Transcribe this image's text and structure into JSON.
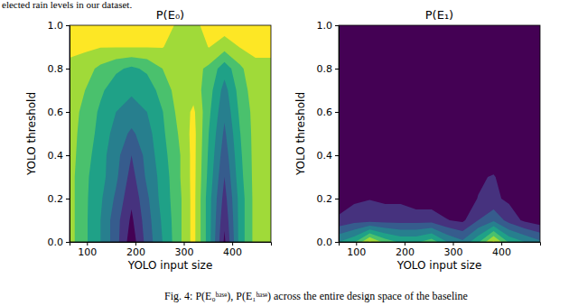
{
  "caption_above": "elected rain levels in our dataset.",
  "caption": "Fig. 4: P(E₀ᵇᵃˢᵉ), P(E₁ᵇᵃˢᵉ) across the entire design space of the baseline",
  "chart_data": [
    {
      "type": "contour",
      "title": "P(E₀)",
      "x_label": "YOLO input size",
      "y_label": "YOLO threshold",
      "x": [
        64,
        96,
        128,
        160,
        192,
        224,
        256,
        288,
        320,
        352,
        384,
        416,
        448,
        480
      ],
      "y": [
        0,
        0.1,
        0.2,
        0.3,
        0.4,
        0.5,
        0.6,
        0.7,
        0.8,
        0.9,
        1.0
      ],
      "z": [
        [
          0.8,
          0.65,
          0.5,
          0.3,
          0.05,
          0.3,
          0.5,
          0.7,
          0.92,
          0.55,
          0.1,
          0.55,
          0.8,
          0.8
        ],
        [
          0.8,
          0.65,
          0.5,
          0.3,
          0.1,
          0.32,
          0.52,
          0.7,
          0.92,
          0.55,
          0.15,
          0.55,
          0.8,
          0.8
        ],
        [
          0.8,
          0.65,
          0.52,
          0.35,
          0.15,
          0.35,
          0.55,
          0.7,
          0.92,
          0.55,
          0.2,
          0.55,
          0.8,
          0.8
        ],
        [
          0.8,
          0.65,
          0.55,
          0.4,
          0.2,
          0.4,
          0.55,
          0.72,
          0.92,
          0.58,
          0.25,
          0.58,
          0.8,
          0.8
        ],
        [
          0.8,
          0.68,
          0.55,
          0.42,
          0.25,
          0.42,
          0.58,
          0.72,
          0.92,
          0.6,
          0.3,
          0.6,
          0.8,
          0.8
        ],
        [
          0.8,
          0.7,
          0.58,
          0.45,
          0.35,
          0.45,
          0.6,
          0.75,
          0.92,
          0.62,
          0.35,
          0.62,
          0.8,
          0.8
        ],
        [
          0.8,
          0.72,
          0.6,
          0.5,
          0.45,
          0.5,
          0.62,
          0.78,
          0.9,
          0.65,
          0.4,
          0.65,
          0.8,
          0.8
        ],
        [
          0.82,
          0.75,
          0.65,
          0.55,
          0.52,
          0.55,
          0.68,
          0.8,
          0.82,
          0.68,
          0.45,
          0.68,
          0.82,
          0.82
        ],
        [
          0.85,
          0.8,
          0.72,
          0.65,
          0.6,
          0.65,
          0.75,
          0.8,
          0.8,
          0.72,
          0.55,
          0.72,
          0.85,
          0.85
        ],
        [
          0.9,
          0.9,
          0.88,
          0.88,
          0.88,
          0.88,
          0.88,
          0.82,
          0.8,
          0.88,
          0.8,
          0.88,
          0.9,
          0.9
        ],
        [
          0.95,
          0.95,
          0.95,
          0.95,
          0.95,
          0.95,
          0.95,
          0.85,
          0.82,
          0.95,
          0.95,
          0.95,
          0.95,
          0.95
        ]
      ],
      "levels": [
        0,
        0.125,
        0.25,
        0.375,
        0.5,
        0.625,
        0.75,
        0.875,
        1.0
      ],
      "xlim": [
        64,
        480
      ],
      "ylim": [
        0,
        1
      ],
      "xticks": [
        100,
        200,
        300,
        400
      ],
      "yticks": [
        {
          "value": 0,
          "label": "0.0"
        },
        {
          "value": 0.2,
          "label": "0.2"
        },
        {
          "value": 0.4,
          "label": "0.4"
        },
        {
          "value": 0.6,
          "label": "0.6"
        },
        {
          "value": 0.8,
          "label": "0.8"
        },
        {
          "value": 1,
          "label": "1.0"
        }
      ]
    },
    {
      "type": "contour",
      "title": "P(E₁)",
      "x_label": "YOLO input size",
      "y_label": "YOLO threshold",
      "x": [
        64,
        96,
        128,
        160,
        192,
        224,
        256,
        288,
        320,
        352,
        384,
        416,
        448,
        480
      ],
      "y": [
        0,
        0.1,
        0.2,
        0.3,
        0.4,
        0.5,
        0.6,
        0.7,
        0.8,
        0.9,
        1.0
      ],
      "z": [
        [
          0.5,
          0.6,
          0.9,
          0.7,
          0.6,
          0.6,
          0.7,
          0.5,
          0.4,
          0.6,
          0.9,
          0.6,
          0.5,
          0.4
        ],
        [
          0.15,
          0.2,
          0.2,
          0.2,
          0.2,
          0.2,
          0.2,
          0.13,
          0.1,
          0.25,
          0.35,
          0.2,
          0.1,
          0.05
        ],
        [
          0.05,
          0.1,
          0.12,
          0.1,
          0.1,
          0.05,
          0.05,
          0.05,
          0.05,
          0.13,
          0.15,
          0.1,
          0.05,
          0.02
        ],
        [
          0.02,
          0.02,
          0.02,
          0.02,
          0.02,
          0.02,
          0.02,
          0.02,
          0.02,
          0.1,
          0.14,
          0.02,
          0.02,
          0.02
        ],
        [
          0.01,
          0.01,
          0.01,
          0.01,
          0.01,
          0.01,
          0.01,
          0.01,
          0.01,
          0.01,
          0.01,
          0.01,
          0.01,
          0.01
        ],
        [
          0.01,
          0.01,
          0.01,
          0.01,
          0.01,
          0.01,
          0.01,
          0.01,
          0.01,
          0.01,
          0.01,
          0.01,
          0.01,
          0.01
        ],
        [
          0.01,
          0.01,
          0.01,
          0.01,
          0.01,
          0.01,
          0.01,
          0.01,
          0.01,
          0.01,
          0.01,
          0.01,
          0.01,
          0.01
        ],
        [
          0.01,
          0.01,
          0.01,
          0.01,
          0.01,
          0.01,
          0.01,
          0.01,
          0.01,
          0.01,
          0.01,
          0.01,
          0.01,
          0.01
        ],
        [
          0.01,
          0.01,
          0.01,
          0.01,
          0.01,
          0.01,
          0.01,
          0.01,
          0.01,
          0.01,
          0.01,
          0.01,
          0.01,
          0.01
        ],
        [
          0.01,
          0.01,
          0.01,
          0.01,
          0.01,
          0.01,
          0.01,
          0.01,
          0.01,
          0.01,
          0.01,
          0.01,
          0.01,
          0.01
        ],
        [
          0.01,
          0.01,
          0.01,
          0.01,
          0.01,
          0.01,
          0.01,
          0.01,
          0.01,
          0.01,
          0.01,
          0.01,
          0.01,
          0.01
        ]
      ],
      "levels": [
        0,
        0.125,
        0.25,
        0.375,
        0.5,
        0.625,
        0.75,
        0.875,
        1.0
      ],
      "xlim": [
        64,
        480
      ],
      "ylim": [
        0,
        1
      ],
      "xticks": [
        100,
        200,
        300,
        400
      ],
      "yticks": [
        {
          "value": 0,
          "label": "0.0"
        },
        {
          "value": 0.2,
          "label": "0.2"
        },
        {
          "value": 0.4,
          "label": "0.4"
        },
        {
          "value": 0.6,
          "label": "0.6"
        },
        {
          "value": 0.8,
          "label": "0.8"
        },
        {
          "value": 1,
          "label": "1.0"
        }
      ]
    }
  ]
}
